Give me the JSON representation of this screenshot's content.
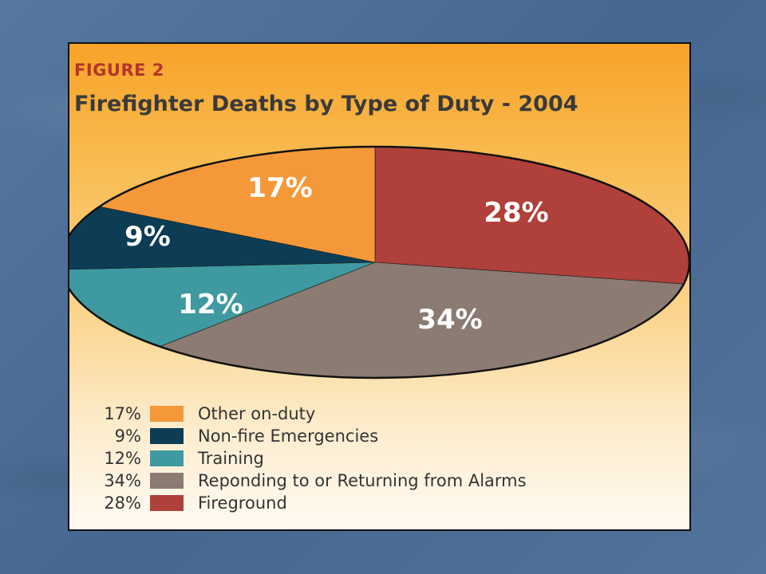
{
  "figure": {
    "label": "FIGURE 2",
    "title": "Firefighter Deaths by Type of Duty - 2004"
  },
  "chart_data": {
    "type": "pie",
    "title": "Firefighter Deaths by Type of Duty - 2004",
    "unit": "%",
    "slices": [
      {
        "name": "Fireground",
        "value": 28,
        "label": "28%",
        "color": "#b0403a"
      },
      {
        "name": "Reponding to or Returning from Alarms",
        "value": 34,
        "label": "34%",
        "color": "#8b7b72"
      },
      {
        "name": "Training",
        "value": 12,
        "label": "12%",
        "color": "#3e9aa0"
      },
      {
        "name": "Non-fire Emergencies",
        "value": 9,
        "label": "9%",
        "color": "#0c3d55"
      },
      {
        "name": "Other on-duty",
        "value": 17,
        "label": "17%",
        "color": "#f5983a"
      }
    ],
    "legend": [
      {
        "pct": "17%",
        "label": "Other on-duty",
        "color": "#f5983a"
      },
      {
        "pct": "9%",
        "label": "Non-fire Emergencies",
        "color": "#0c3d55"
      },
      {
        "pct": "12%",
        "label": "Training",
        "color": "#3e9aa0"
      },
      {
        "pct": "34%",
        "label": "Reponding to or Returning from Alarms",
        "color": "#8b7b72"
      },
      {
        "pct": "28%",
        "label": "Fireground",
        "color": "#b0403a"
      }
    ],
    "legend_placement": "bottom-left",
    "slice_label_color": "#ffffff"
  }
}
